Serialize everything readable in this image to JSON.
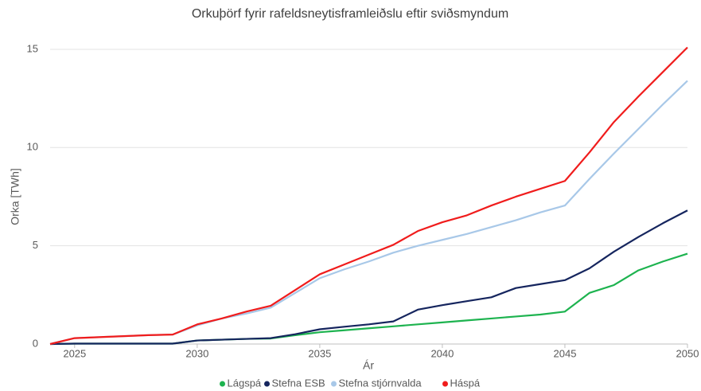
{
  "chart_data": {
    "type": "line",
    "title": "Orkuþörf fyrir rafeldsneytisframleiðslu eftir sviðsmyndum",
    "xlabel": "Ár",
    "ylabel": "Orka [TWh]",
    "x": [
      2024,
      2025,
      2026,
      2027,
      2028,
      2029,
      2030,
      2031,
      2032,
      2033,
      2034,
      2035,
      2036,
      2037,
      2038,
      2039,
      2040,
      2041,
      2042,
      2043,
      2044,
      2045,
      2046,
      2047,
      2048,
      2049,
      2050
    ],
    "series": [
      {
        "name": "Lágspá",
        "color": "#1db34f",
        "values": [
          0,
          0.02,
          0.02,
          0.02,
          0.02,
          0.02,
          0.18,
          0.22,
          0.26,
          0.28,
          0.45,
          0.6,
          0.7,
          0.8,
          0.9,
          1.0,
          1.1,
          1.2,
          1.3,
          1.4,
          1.5,
          1.65,
          2.6,
          3.0,
          3.75,
          4.2,
          4.6
        ]
      },
      {
        "name": "Stefna ESB",
        "color": "#15255e",
        "values": [
          0,
          0.02,
          0.02,
          0.02,
          0.02,
          0.02,
          0.18,
          0.22,
          0.26,
          0.3,
          0.5,
          0.75,
          0.88,
          1.0,
          1.15,
          1.75,
          1.98,
          2.18,
          2.38,
          2.85,
          3.05,
          3.25,
          3.85,
          4.7,
          5.45,
          6.15,
          6.8
        ]
      },
      {
        "name": "Stefna stjórnvalda",
        "color": "#a8c8e8",
        "values": [
          0,
          0.3,
          0.35,
          0.4,
          0.45,
          0.48,
          0.95,
          1.3,
          1.55,
          1.85,
          2.6,
          3.35,
          3.8,
          4.2,
          4.65,
          5.0,
          5.3,
          5.6,
          5.95,
          6.3,
          6.7,
          7.05,
          8.4,
          9.7,
          10.95,
          12.2,
          13.4
        ]
      },
      {
        "name": "Háspá",
        "color": "#f01c1c",
        "values": [
          0,
          0.3,
          0.35,
          0.4,
          0.45,
          0.48,
          1.0,
          1.3,
          1.65,
          1.95,
          2.75,
          3.55,
          4.05,
          4.55,
          5.05,
          5.75,
          6.2,
          6.55,
          7.05,
          7.5,
          7.9,
          8.3,
          9.75,
          11.3,
          12.6,
          13.85,
          15.1
        ]
      }
    ],
    "xlim": [
      2024,
      2050
    ],
    "xticks": [
      2025,
      2030,
      2035,
      2040,
      2045,
      2050
    ],
    "ylim": [
      0,
      15.5
    ],
    "yticks": [
      0,
      5,
      10,
      15
    ],
    "grid": true,
    "legend": "bottom"
  }
}
